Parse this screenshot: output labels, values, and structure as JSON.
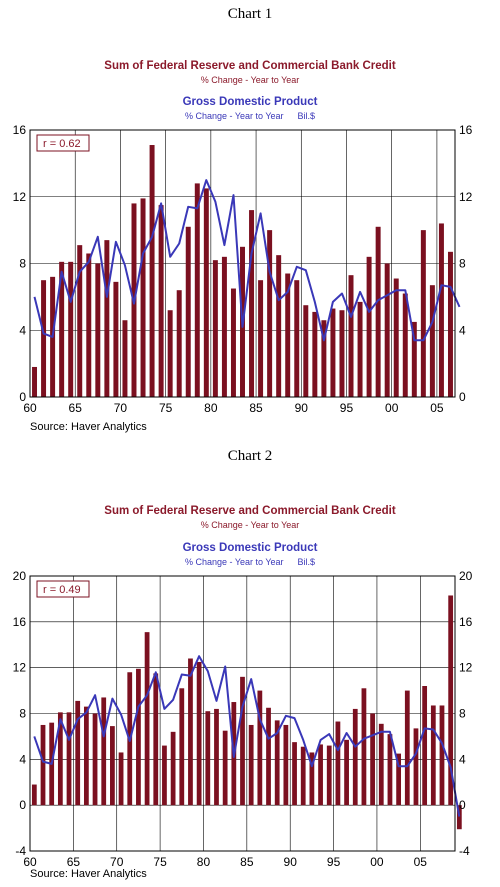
{
  "charts": [
    {
      "heading": "Chart 1",
      "title1": "Sum of Federal Reserve and Commercial Bank Credit",
      "subtitle1": "% Change - Year to Year",
      "title2": "Gross Domestic Product",
      "subtitle2": "% Change - Year to Year",
      "unit2": "Bil.$",
      "r_text": "r = 0.62",
      "source": "Source: Haver Analytics"
    },
    {
      "heading": "Chart 2",
      "title1": "Sum of Federal Reserve and Commercial Bank Credit",
      "subtitle1": "% Change - Year to Year",
      "title2": "Gross Domestic Product",
      "subtitle2": "% Change - Year to Year",
      "unit2": "Bil.$",
      "r_text": "r = 0.49",
      "source": "Source: Haver Analytics"
    }
  ],
  "colors": {
    "bar": "#7b1020",
    "line": "#3a38b8",
    "grid": "#000000"
  },
  "chart_data": [
    {
      "type": "bar",
      "xlim": [
        1960,
        2007
      ],
      "ylim": [
        0,
        16
      ],
      "yticks": [
        0,
        4,
        8,
        12,
        16
      ],
      "xtick_values": [
        1960,
        1965,
        1970,
        1975,
        1980,
        1985,
        1990,
        1995,
        2000,
        2005
      ],
      "xtick_labels": [
        "60",
        "65",
        "70",
        "75",
        "80",
        "85",
        "90",
        "95",
        "00",
        "05"
      ],
      "grid": true,
      "series": [
        {
          "kind": "bar",
          "x": [
            1960,
            1961,
            1962,
            1963,
            1964,
            1965,
            1966,
            1967,
            1968,
            1969,
            1970,
            1971,
            1972,
            1973,
            1974,
            1975,
            1976,
            1977,
            1978,
            1979,
            1980,
            1981,
            1982,
            1983,
            1984,
            1985,
            1986,
            1987,
            1988,
            1989,
            1990,
            1991,
            1992,
            1993,
            1994,
            1995,
            1996,
            1997,
            1998,
            1999,
            2000,
            2001,
            2002,
            2003,
            2004,
            2005,
            2006
          ],
          "values": [
            1.8,
            7.0,
            7.2,
            8.1,
            8.1,
            9.1,
            8.6,
            8.0,
            9.4,
            6.9,
            4.6,
            11.6,
            11.9,
            15.1,
            11.5,
            5.2,
            6.4,
            10.2,
            12.8,
            12.5,
            8.2,
            8.4,
            6.5,
            9.0,
            11.2,
            7.0,
            10.0,
            8.5,
            7.4,
            7.0,
            5.5,
            5.1,
            4.6,
            5.3,
            5.2,
            7.3,
            5.7,
            8.4,
            10.2,
            8.0,
            7.1,
            6.2,
            4.5,
            10.0,
            6.7,
            10.4,
            8.7
          ]
        },
        {
          "kind": "line",
          "x": [
            1960,
            1961,
            1962,
            1963,
            1964,
            1965,
            1966,
            1967,
            1968,
            1969,
            1970,
            1971,
            1972,
            1973,
            1974,
            1975,
            1976,
            1977,
            1978,
            1979,
            1980,
            1981,
            1982,
            1983,
            1984,
            1985,
            1986,
            1987,
            1988,
            1989,
            1990,
            1991,
            1992,
            1993,
            1994,
            1995,
            1996,
            1997,
            1998,
            1999,
            2000,
            2001,
            2002,
            2003,
            2004,
            2005,
            2006,
            2007
          ],
          "values": [
            6.0,
            3.8,
            3.6,
            7.5,
            5.7,
            7.5,
            8.1,
            9.6,
            6.0,
            9.3,
            7.9,
            5.6,
            8.6,
            9.6,
            11.6,
            8.4,
            9.2,
            11.4,
            11.3,
            13.0,
            11.7,
            9.1,
            12.1,
            4.2,
            8.6,
            11.0,
            7.5,
            5.8,
            6.3,
            7.8,
            7.6,
            5.7,
            3.4,
            5.7,
            6.2,
            4.8,
            6.3,
            5.1,
            5.8,
            6.1,
            6.4,
            6.4,
            3.4,
            3.4,
            4.5,
            6.7,
            6.6,
            5.4
          ]
        }
      ]
    },
    {
      "type": "bar",
      "xlim": [
        1960,
        2009
      ],
      "ylim": [
        -4,
        20
      ],
      "yticks": [
        -4,
        0,
        4,
        8,
        12,
        16,
        20
      ],
      "xtick_values": [
        1960,
        1965,
        1970,
        1975,
        1980,
        1985,
        1990,
        1995,
        2000,
        2005
      ],
      "xtick_labels": [
        "60",
        "65",
        "70",
        "75",
        "80",
        "85",
        "90",
        "95",
        "00",
        "05"
      ],
      "grid": true,
      "series": [
        {
          "kind": "bar",
          "x": [
            1960,
            1961,
            1962,
            1963,
            1964,
            1965,
            1966,
            1967,
            1968,
            1969,
            1970,
            1971,
            1972,
            1973,
            1974,
            1975,
            1976,
            1977,
            1978,
            1979,
            1980,
            1981,
            1982,
            1983,
            1984,
            1985,
            1986,
            1987,
            1988,
            1989,
            1990,
            1991,
            1992,
            1993,
            1994,
            1995,
            1996,
            1997,
            1998,
            1999,
            2000,
            2001,
            2002,
            2003,
            2004,
            2005,
            2006,
            2007,
            2008,
            2009
          ],
          "values": [
            1.8,
            7.0,
            7.2,
            8.1,
            8.1,
            9.1,
            8.6,
            8.0,
            9.4,
            6.9,
            4.6,
            11.6,
            11.9,
            15.1,
            11.5,
            5.2,
            6.4,
            10.2,
            12.8,
            12.5,
            8.2,
            8.4,
            6.5,
            9.0,
            11.2,
            7.0,
            10.0,
            8.5,
            7.4,
            7.0,
            5.5,
            5.1,
            4.6,
            5.3,
            5.2,
            7.3,
            5.7,
            8.4,
            10.2,
            8.0,
            7.1,
            6.2,
            4.5,
            10.0,
            6.7,
            10.4,
            8.7,
            8.7,
            18.3,
            -2.1
          ]
        },
        {
          "kind": "line",
          "x": [
            1960,
            1961,
            1962,
            1963,
            1964,
            1965,
            1966,
            1967,
            1968,
            1969,
            1970,
            1971,
            1972,
            1973,
            1974,
            1975,
            1976,
            1977,
            1978,
            1979,
            1980,
            1981,
            1982,
            1983,
            1984,
            1985,
            1986,
            1987,
            1988,
            1989,
            1990,
            1991,
            1992,
            1993,
            1994,
            1995,
            1996,
            1997,
            1998,
            1999,
            2000,
            2001,
            2002,
            2003,
            2004,
            2005,
            2006,
            2007,
            2008,
            2009
          ],
          "values": [
            6.0,
            3.8,
            3.6,
            7.5,
            5.7,
            7.5,
            8.1,
            9.6,
            6.0,
            9.3,
            7.9,
            5.6,
            8.6,
            9.6,
            11.6,
            8.4,
            9.2,
            11.4,
            11.3,
            13.0,
            11.7,
            9.1,
            12.1,
            4.2,
            8.6,
            11.0,
            7.5,
            5.8,
            6.3,
            7.8,
            7.6,
            5.7,
            3.4,
            5.7,
            6.2,
            4.8,
            6.3,
            5.1,
            5.8,
            6.1,
            6.4,
            6.4,
            3.4,
            3.4,
            4.5,
            6.7,
            6.6,
            5.4,
            3.3,
            -1.0
          ]
        }
      ]
    }
  ]
}
